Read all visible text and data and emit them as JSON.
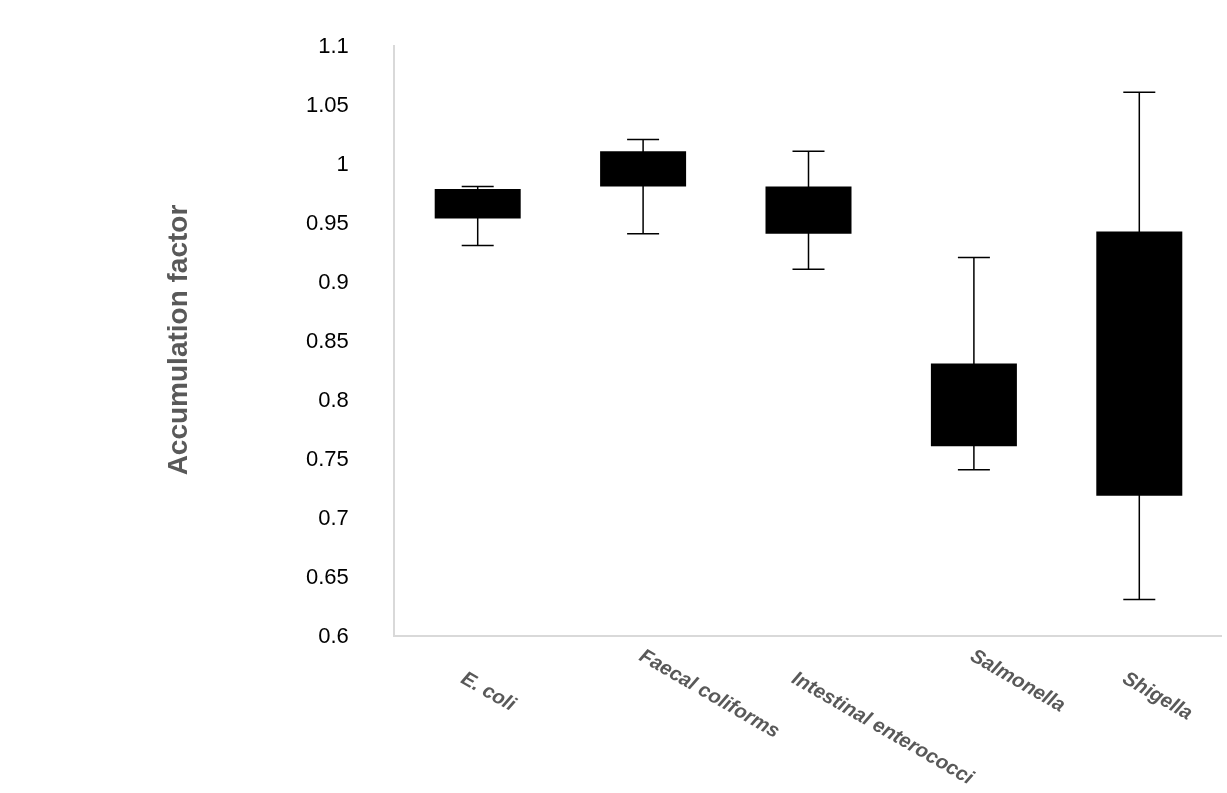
{
  "chart_data": {
    "type": "bar",
    "ylabel": "Accumulation factor",
    "categories": [
      "E. coli",
      "Faecal coliforms",
      "Intestinal enterococci",
      "Salmonella",
      "Shigella"
    ],
    "base": [
      0.953,
      0.98,
      0.94,
      0.76,
      0.718
    ],
    "values": [
      0.025,
      0.03,
      0.04,
      0.07,
      0.224
    ],
    "errors": [
      [
        0.93,
        0.98
      ],
      [
        0.94,
        1.02
      ],
      [
        0.91,
        1.01
      ],
      [
        0.74,
        0.92
      ],
      [
        0.63,
        1.06
      ]
    ],
    "color": "#000000",
    "ylim": [
      0.6,
      1.1
    ],
    "yticks": [
      0.6,
      0.65,
      0.7,
      0.75,
      0.8,
      0.85,
      0.9,
      0.95,
      1,
      1.05,
      1.1
    ],
    "grid": false,
    "legend": false
  }
}
